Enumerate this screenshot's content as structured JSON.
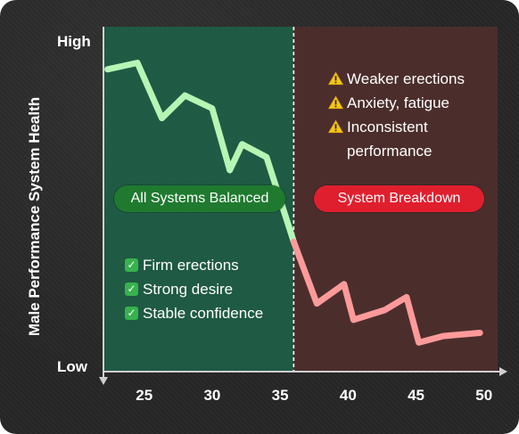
{
  "chart_data": {
    "type": "line",
    "ylabel": "Male Performance System Health",
    "xlabel": "",
    "y_ticks": [
      "High",
      "Low"
    ],
    "x_ticks": [
      25,
      30,
      35,
      40,
      45,
      50
    ],
    "xlim": [
      22,
      51
    ],
    "ylim": [
      0,
      100
    ],
    "vertical_divider_x": 36,
    "regions": [
      {
        "from": 22,
        "to": 36,
        "label": "All Systems Balanced",
        "color": "#1f7a2f"
      },
      {
        "from": 36,
        "to": 50,
        "label": "System Breakdown",
        "color": "#e01f2e"
      }
    ],
    "series": [
      {
        "color_left": "#b6f5b3",
        "color_right": "#ff9a9a",
        "x": [
          22.3,
          24.5,
          26.3,
          28,
          30,
          31.3,
          32.2,
          34,
          36,
          37.7,
          39.7,
          40.4,
          42.7,
          44.3,
          45.2,
          47,
          49.7
        ],
        "y": [
          91,
          93,
          76,
          83,
          79,
          60,
          68,
          64,
          38,
          19,
          25,
          14,
          17,
          21,
          7,
          9,
          10
        ]
      }
    ]
  },
  "notes_left": [
    {
      "icon": "check-icon",
      "text": "Firm erections"
    },
    {
      "icon": "check-icon",
      "text": "Strong desire"
    },
    {
      "icon": "check-icon",
      "text": "Stable confidence"
    }
  ],
  "notes_right": [
    {
      "icon": "warning-icon",
      "text": "Weaker erections"
    },
    {
      "icon": "warning-icon",
      "text": "Anxiety, fatigue"
    },
    {
      "icon": "warning-icon",
      "text": "Inconsistent performance"
    }
  ],
  "colors": {
    "left_region": "#1e5e46",
    "right_region": "#4e2f2c",
    "axis": "#cfcfcf",
    "warning": "#f5c518",
    "check": "#37b24d"
  }
}
